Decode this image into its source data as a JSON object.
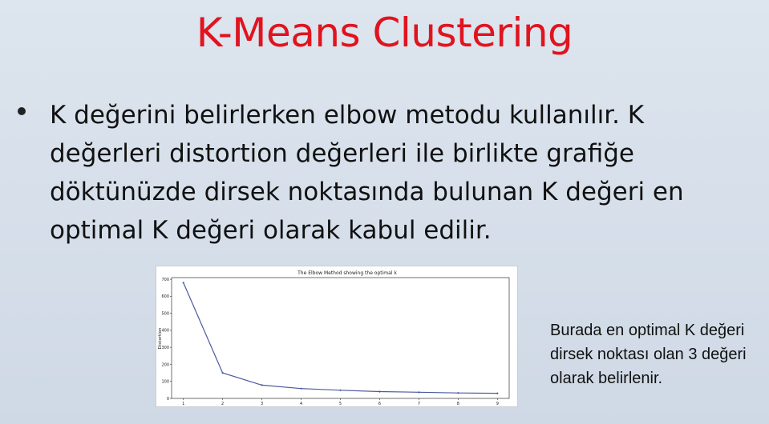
{
  "slide": {
    "title": "K-Means Clustering",
    "bullet": "K değerini belirlerken elbow metodu kullanılır. K değerleri distortion değerleri ile birlikte grafiğe döktünüzde dirsek noktasında bulunan K değeri en optimal K değeri olarak kabul edilir.",
    "note": "Burada en optimal K değeri  dirsek noktası olan 3 değeri olarak belirlenir."
  },
  "colors": {
    "title": "#e0141e",
    "line": "#4a5a9e",
    "background": "#d8e1eb"
  },
  "chart_data": {
    "type": "line",
    "title": "The Elbow Method showing the optimal k",
    "ylabel": "Distortion",
    "xlabel": "",
    "x": [
      1,
      2,
      3,
      4,
      5,
      6,
      7,
      8,
      9
    ],
    "y": [
      680,
      150,
      78,
      58,
      48,
      40,
      36,
      32,
      30
    ],
    "xlim": [
      0.7,
      9.3
    ],
    "ylim": [
      0,
      710
    ],
    "xticks": [
      "1",
      "2",
      "3",
      "4",
      "5",
      "6",
      "7",
      "8",
      "9"
    ],
    "yticks": [
      "0",
      "100",
      "200",
      "300",
      "400",
      "500",
      "600",
      "700"
    ],
    "grid": false
  }
}
